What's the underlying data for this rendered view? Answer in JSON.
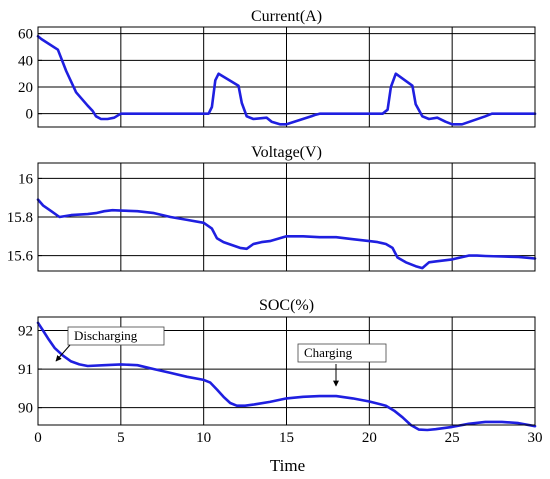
{
  "chart_data": [
    {
      "type": "line",
      "title": "Current(A)",
      "xlabel": "",
      "ylabel": "",
      "xlim": [
        0,
        30
      ],
      "ylim": [
        -10,
        65
      ],
      "xticks": [
        0,
        5,
        10,
        15,
        20,
        25,
        30
      ],
      "yticks": [
        0,
        20,
        40,
        60
      ],
      "ytick_labels": [
        "0",
        "20",
        "40",
        "60"
      ],
      "grid": true,
      "color": "#1f1fe0",
      "series": [
        {
          "x": [
            0,
            0.2,
            1.2,
            1.7,
            2.3,
            3.0,
            3.3,
            3.5,
            3.8,
            4.2,
            4.6,
            5.0,
            6,
            10.3,
            10.5,
            10.7,
            10.9,
            12.1,
            12.3,
            12.6,
            13.0,
            13.8,
            14.1,
            14.6,
            15.0,
            16.5,
            16.7,
            17.0,
            18.0,
            20.8,
            21.1,
            21.3,
            21.6,
            22.6,
            22.8,
            23.2,
            23.6,
            24.1,
            24.6,
            25.0,
            25.6,
            27.0,
            27.4,
            30
          ],
          "y": [
            58,
            56,
            48,
            32,
            16,
            6,
            2,
            -2,
            -4,
            -4,
            -3,
            0,
            0,
            0,
            5,
            25,
            30,
            21,
            8,
            -2,
            -4,
            -3,
            -6,
            -8,
            -8,
            -2,
            -1,
            0,
            0,
            0,
            3,
            20,
            30,
            21,
            7,
            -2,
            -4,
            -3,
            -6,
            -8,
            -8,
            -2,
            0,
            0
          ]
        }
      ]
    },
    {
      "type": "line",
      "title": "Voltage(V)",
      "xlabel": "",
      "ylabel": "",
      "xlim": [
        0,
        30
      ],
      "ylim": [
        15.52,
        16.08
      ],
      "xticks": [
        0,
        5,
        10,
        15,
        20,
        25,
        30
      ],
      "yticks": [
        15.6,
        15.8,
        16.0
      ],
      "ytick_labels": [
        "15.6",
        "15.8",
        "16"
      ],
      "grid": true,
      "color": "#1f1fe0",
      "series": [
        {
          "x": [
            0,
            0.3,
            0.8,
            1.3,
            2.0,
            3.0,
            3.5,
            4.0,
            4.5,
            5.0,
            6.0,
            7.0,
            8.0,
            9.0,
            10.0,
            10.5,
            10.8,
            11.2,
            11.7,
            12.2,
            12.6,
            13.0,
            13.5,
            14.0,
            15.0,
            16.0,
            17.0,
            18.0,
            19.0,
            20.0,
            20.5,
            21.0,
            21.4,
            21.7,
            22.2,
            22.8,
            23.2,
            23.6,
            24.0,
            24.5,
            25.0,
            25.5,
            26.0,
            26.5,
            27.0,
            28.0,
            29.0,
            30
          ],
          "y": [
            15.89,
            15.86,
            15.83,
            15.8,
            15.81,
            15.815,
            15.82,
            15.83,
            15.835,
            15.833,
            15.83,
            15.82,
            15.8,
            15.785,
            15.77,
            15.74,
            15.69,
            15.67,
            15.655,
            15.64,
            15.635,
            15.66,
            15.67,
            15.675,
            15.7,
            15.7,
            15.695,
            15.695,
            15.685,
            15.675,
            15.67,
            15.66,
            15.64,
            15.59,
            15.565,
            15.545,
            15.535,
            15.565,
            15.57,
            15.575,
            15.58,
            15.59,
            15.6,
            15.6,
            15.598,
            15.595,
            15.593,
            15.585
          ]
        }
      ]
    },
    {
      "type": "line",
      "title": "SOC(%)",
      "xlabel": "Time",
      "ylabel": "",
      "xlim": [
        0,
        30
      ],
      "ylim": [
        89.55,
        92.35
      ],
      "xticks": [
        0,
        5,
        10,
        15,
        20,
        25,
        30
      ],
      "xtick_labels": [
        "0",
        "5",
        "10",
        "15",
        "20",
        "25",
        "30"
      ],
      "yticks": [
        90,
        91,
        92
      ],
      "ytick_labels": [
        "90",
        "91",
        "92"
      ],
      "grid": true,
      "color": "#1f1fe0",
      "annotations": [
        {
          "text": "Discharging",
          "x": 2.0,
          "y": 91.2
        },
        {
          "text": "Charging",
          "x": 18.0,
          "y": 90.33
        }
      ],
      "series": [
        {
          "x": [
            0,
            0.3,
            0.6,
            1.0,
            1.5,
            2.0,
            2.5,
            3.0,
            4.0,
            5.0,
            6.0,
            7.0,
            8.0,
            9.0,
            10.0,
            10.4,
            10.8,
            11.2,
            11.6,
            12.0,
            12.5,
            13.0,
            14.0,
            15.0,
            16.0,
            17.0,
            18.0,
            19.0,
            20.0,
            21.0,
            21.5,
            22.0,
            22.5,
            23.0,
            23.5,
            24.0,
            25.0,
            26.0,
            27.0,
            28.0,
            29.0,
            30
          ],
          "y": [
            92.2,
            92.0,
            91.8,
            91.55,
            91.35,
            91.2,
            91.12,
            91.08,
            91.1,
            91.12,
            91.1,
            91.0,
            90.9,
            90.8,
            90.72,
            90.65,
            90.47,
            90.28,
            90.12,
            90.05,
            90.05,
            90.08,
            90.15,
            90.24,
            90.28,
            90.3,
            90.3,
            90.24,
            90.16,
            90.05,
            89.92,
            89.75,
            89.55,
            89.43,
            89.42,
            89.44,
            89.5,
            89.58,
            89.63,
            89.63,
            89.6,
            89.52
          ]
        }
      ]
    }
  ]
}
